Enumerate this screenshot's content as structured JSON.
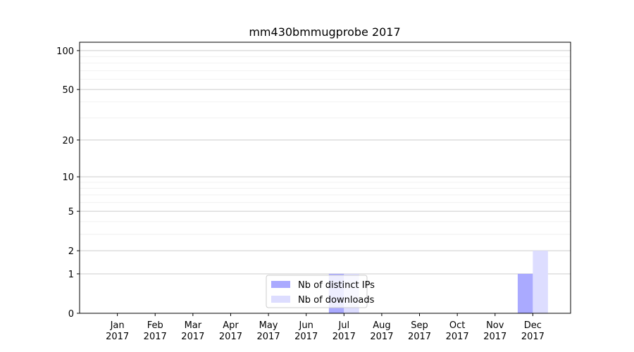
{
  "chart_data": {
    "type": "bar",
    "title": "mm430bmmugprobe 2017",
    "categories": [
      "Jan 2017",
      "Feb 2017",
      "Mar 2017",
      "Apr 2017",
      "May 2017",
      "Jun 2017",
      "Jul 2017",
      "Aug 2017",
      "Sep 2017",
      "Oct 2017",
      "Nov 2017",
      "Dec 2017"
    ],
    "series": [
      {
        "name": "Nb of distinct IPs",
        "color": "#aaaaff",
        "values": [
          0,
          0,
          0,
          0,
          0,
          0,
          1,
          0,
          0,
          0,
          0,
          1
        ]
      },
      {
        "name": "Nb of downloads",
        "color": "#ddddff",
        "values": [
          0,
          0,
          0,
          0,
          0,
          0,
          1,
          0,
          0,
          0,
          0,
          2
        ]
      }
    ],
    "yscale": "log1p",
    "ylim": [
      0,
      116
    ],
    "yticks": [
      0,
      1,
      2,
      5,
      10,
      20,
      50,
      100
    ],
    "yminorticks": [
      3,
      4,
      6,
      7,
      8,
      9,
      30,
      40,
      60,
      70,
      80,
      90
    ],
    "grid": true,
    "legend": "lower center"
  }
}
